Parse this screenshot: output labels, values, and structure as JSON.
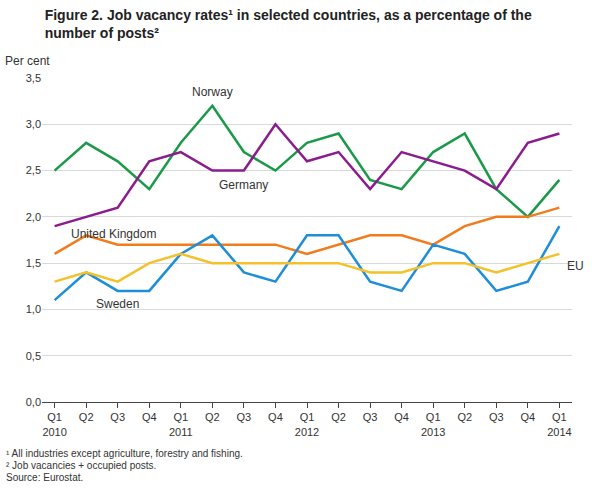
{
  "chart_data": {
    "type": "line",
    "title": "Figure 2. Job vacancy rates¹ in selected countries, as a percentage of the\nnumber of posts²",
    "y_label": "Per cent",
    "notes": [
      "¹ All industries except agriculture, forestry and fishing.",
      "² Job vacancies + occupied posts.",
      "Source: Eurostat."
    ],
    "categories": [
      "Q1\n2010",
      "Q2",
      "Q3",
      "Q4",
      "Q1\n2011",
      "Q2",
      "Q3",
      "Q4",
      "Q1\n2012",
      "Q2",
      "Q3",
      "Q4",
      "Q1\n2013",
      "Q2",
      "Q3",
      "Q4",
      "Q1\n2014"
    ],
    "series": [
      {
        "name": "Norway",
        "color": "#1a9a48",
        "values": [
          2.5,
          2.8,
          2.6,
          2.3,
          2.8,
          3.2,
          2.7,
          2.5,
          2.8,
          2.9,
          2.4,
          2.3,
          2.7,
          2.9,
          2.3,
          2.0,
          2.4
        ]
      },
      {
        "name": "Germany",
        "color": "#8a1c8e",
        "values": [
          1.9,
          2.0,
          2.1,
          2.6,
          2.7,
          2.5,
          2.5,
          3.0,
          2.6,
          2.7,
          2.3,
          2.7,
          2.6,
          2.5,
          2.3,
          2.8,
          2.9
        ]
      },
      {
        "name": "United Kingdom",
        "color": "#f07c1e",
        "values": [
          1.6,
          1.8,
          1.7,
          1.7,
          1.7,
          1.7,
          1.7,
          1.7,
          1.6,
          1.7,
          1.8,
          1.8,
          1.7,
          1.9,
          2.0,
          2.0,
          2.1
        ]
      },
      {
        "name": "Sweden",
        "color": "#1e8ed6",
        "values": [
          1.1,
          1.4,
          1.2,
          1.2,
          1.6,
          1.8,
          1.4,
          1.3,
          1.8,
          1.8,
          1.3,
          1.2,
          1.7,
          1.6,
          1.2,
          1.3,
          1.9
        ]
      },
      {
        "name": "EU",
        "color": "#f5c02a",
        "values": [
          1.3,
          1.4,
          1.3,
          1.5,
          1.6,
          1.5,
          1.5,
          1.5,
          1.5,
          1.5,
          1.4,
          1.4,
          1.5,
          1.5,
          1.4,
          1.5,
          1.6
        ]
      }
    ],
    "ylim": [
      0,
      3.5
    ],
    "yticks": [
      {
        "value": 0,
        "label": "0,0"
      },
      {
        "value": 0.5,
        "label": "0,5"
      },
      {
        "value": 1,
        "label": "1,0"
      },
      {
        "value": 1.5,
        "label": "1,5"
      },
      {
        "value": 2,
        "label": "2,0"
      },
      {
        "value": 2.5,
        "label": "2,5"
      },
      {
        "value": 3,
        "label": "3,0"
      },
      {
        "value": 3.5,
        "label": "3,5"
      }
    ],
    "grid": true
  }
}
